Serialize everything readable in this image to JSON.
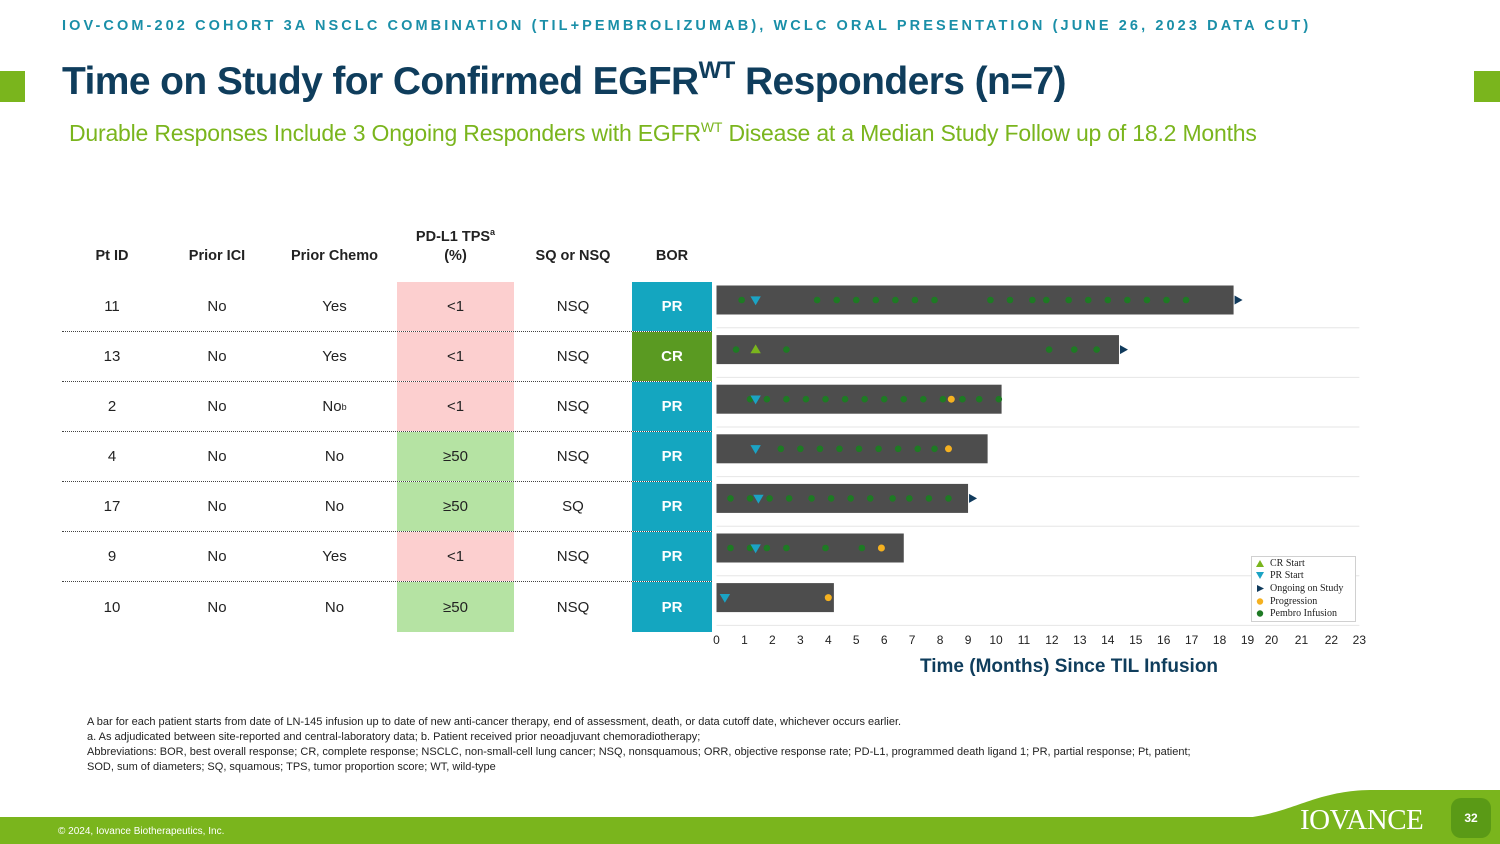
{
  "slide": {
    "banner": "IOV-COM-202 COHORT 3A NSCLC COMBINATION (TIL+PEMBROLIZUMAB), WCLC ORAL PRESENTATION (JUNE 26, 2023 DATA CUT)",
    "title_main": "Time on Study for Confirmed EGFR",
    "title_sup": "WT",
    "title_end": " Responders (n=7)",
    "subtitle_start": "Durable Responses Include 3 Ongoing Responders with EGFR",
    "subtitle_sup": "WT",
    "subtitle_end": " Disease at a Median Study Follow up of 18.2 Months",
    "copyright": "© 2024, Iovance Biotherapeutics, Inc.",
    "logo": "IOVANCE",
    "page_number": "32"
  },
  "colors": {
    "bar": "#4d4d4d",
    "pd_l1_low": "#fccfcf",
    "pd_l1_high": "#b5e3a3",
    "bor_pr": "#14a6c0",
    "bor_cr": "#5a9a22",
    "cr_start": "#7ab51d",
    "pr_start": "#1ba3c4",
    "ongoing": "#103a5c",
    "progression": "#f5b120",
    "pembro": "#1e7a24"
  },
  "table": {
    "headers": {
      "pt_id": "Pt ID",
      "prior_ici": "Prior ICI",
      "prior_chemo": "Prior Chemo",
      "pdl1_line1": "PD-L1 TPS",
      "pdl1_sup": "a",
      "pdl1_line2": "(%)",
      "histology": "SQ or NSQ",
      "bor": "BOR"
    },
    "rows": [
      {
        "pt": "11",
        "ici": "No",
        "chemo": "Yes",
        "chemo_sup": "",
        "pdl1": "<1",
        "hist": "NSQ",
        "bor": "PR"
      },
      {
        "pt": "13",
        "ici": "No",
        "chemo": "Yes",
        "chemo_sup": "",
        "pdl1": "<1",
        "hist": "NSQ",
        "bor": "CR"
      },
      {
        "pt": "2",
        "ici": "No",
        "chemo": "No",
        "chemo_sup": "b",
        "pdl1": "<1",
        "hist": "NSQ",
        "bor": "PR"
      },
      {
        "pt": "4",
        "ici": "No",
        "chemo": "No",
        "chemo_sup": "",
        "pdl1": "≥50",
        "hist": "NSQ",
        "bor": "PR"
      },
      {
        "pt": "17",
        "ici": "No",
        "chemo": "No",
        "chemo_sup": "",
        "pdl1": "≥50",
        "hist": "SQ",
        "bor": "PR"
      },
      {
        "pt": "9",
        "ici": "No",
        "chemo": "Yes",
        "chemo_sup": "",
        "pdl1": "<1",
        "hist": "NSQ",
        "bor": "PR"
      },
      {
        "pt": "10",
        "ici": "No",
        "chemo": "No",
        "chemo_sup": "",
        "pdl1": "≥50",
        "hist": "NSQ",
        "bor": "PR"
      }
    ]
  },
  "chart_data": {
    "type": "bar",
    "orientation": "horizontal",
    "xlabel": "Time (Months) Since TIL Infusion",
    "xlim": [
      0,
      23
    ],
    "xticks": [
      "0",
      "1",
      "2",
      "3",
      "4",
      "5",
      "6",
      "7",
      "8",
      "9",
      "10",
      "11",
      "12",
      "13",
      "14",
      "15",
      "16",
      "17",
      "18",
      "19",
      "20",
      "21",
      "22",
      "23"
    ],
    "categories": [
      "11",
      "13",
      "2",
      "4",
      "17",
      "9",
      "10"
    ],
    "durations": [
      18.5,
      14.4,
      10.2,
      9.7,
      9.0,
      6.7,
      4.2
    ],
    "legend": [
      "CR Start",
      "PR Start",
      "Ongoing on Study",
      "Progression",
      "Pembro Infusion"
    ],
    "legend_position": "bottom-right",
    "events": [
      {
        "pt": "11",
        "cr_start": null,
        "pr_start": 1.4,
        "ongoing": true,
        "progression": null,
        "pembro": [
          0.9,
          3.6,
          4.3,
          5.0,
          5.7,
          6.4,
          7.1,
          7.8,
          9.8,
          10.5,
          11.3,
          11.8,
          12.6,
          13.3,
          14.0,
          14.7,
          15.4,
          16.1,
          16.8
        ]
      },
      {
        "pt": "13",
        "cr_start": 1.4,
        "pr_start": null,
        "ongoing": true,
        "progression": null,
        "pembro": [
          0.7,
          2.5,
          11.9,
          12.8,
          13.6
        ]
      },
      {
        "pt": "2",
        "cr_start": null,
        "pr_start": 1.4,
        "ongoing": false,
        "progression": 8.4,
        "pembro": [
          1.2,
          1.8,
          2.5,
          3.2,
          3.9,
          4.6,
          5.3,
          6.0,
          6.7,
          7.4,
          8.1,
          8.8,
          9.4,
          10.1
        ]
      },
      {
        "pt": "4",
        "cr_start": null,
        "pr_start": 1.4,
        "ongoing": false,
        "progression": 8.3,
        "pembro": [
          2.3,
          3.0,
          3.7,
          4.4,
          5.1,
          5.8,
          6.5,
          7.2,
          7.8
        ]
      },
      {
        "pt": "17",
        "cr_start": null,
        "pr_start": 1.5,
        "ongoing": true,
        "progression": null,
        "pembro": [
          0.5,
          1.2,
          1.9,
          2.6,
          3.4,
          4.1,
          4.8,
          5.5,
          6.3,
          6.9,
          7.6,
          8.3
        ]
      },
      {
        "pt": "9",
        "cr_start": null,
        "pr_start": 1.4,
        "ongoing": false,
        "progression": 5.9,
        "pembro": [
          0.5,
          1.2,
          1.8,
          2.5,
          3.9,
          5.2
        ]
      },
      {
        "pt": "10",
        "cr_start": null,
        "pr_start": 0.3,
        "ongoing": false,
        "progression": 4.0,
        "pembro": []
      }
    ]
  },
  "footnotes": {
    "line1": "A bar for each patient starts from date of LN-145 infusion up to date of new anti-cancer therapy, end of assessment, death, or data cutoff date, whichever occurs earlier.",
    "line2": "a. As adjudicated between site-reported and central-laboratory data; b. Patient received prior neoadjuvant chemoradiotherapy;",
    "line3": "Abbreviations: BOR, best overall response; CR, complete response; NSCLC, non-small-cell lung cancer; NSQ, nonsquamous; ORR, objective response rate; PD-L1, programmed death ligand 1; PR, partial response; Pt, patient; SOD, sum of diameters; SQ, squamous; TPS, tumor proportion score; WT, wild-type"
  }
}
